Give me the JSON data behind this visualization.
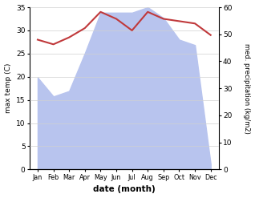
{
  "months": [
    "Jan",
    "Feb",
    "Mar",
    "Apr",
    "May",
    "Jun",
    "Jul",
    "Aug",
    "Sep",
    "Oct",
    "Nov",
    "Dec"
  ],
  "x": [
    0,
    1,
    2,
    3,
    4,
    5,
    6,
    7,
    8,
    9,
    10,
    11
  ],
  "temperature": [
    28.0,
    27.0,
    28.5,
    30.5,
    34.0,
    32.5,
    30.0,
    34.0,
    32.5,
    32.0,
    31.5,
    29.0
  ],
  "precipitation": [
    34,
    27,
    29,
    43,
    58,
    58,
    58,
    60,
    56,
    48,
    46,
    2
  ],
  "temp_color": "#c0393b",
  "precip_color": "#b8c4ee",
  "temp_ylim": [
    0,
    35
  ],
  "precip_ylim": [
    0,
    60
  ],
  "temp_yticks": [
    0,
    5,
    10,
    15,
    20,
    25,
    30,
    35
  ],
  "precip_yticks": [
    0,
    10,
    20,
    30,
    40,
    50,
    60
  ],
  "xlabel": "date (month)",
  "ylabel_left": "max temp (C)",
  "ylabel_right": "med. precipitation (kg/m2)",
  "bg_color": "#ffffff",
  "grid_color": "#d0d0d0"
}
